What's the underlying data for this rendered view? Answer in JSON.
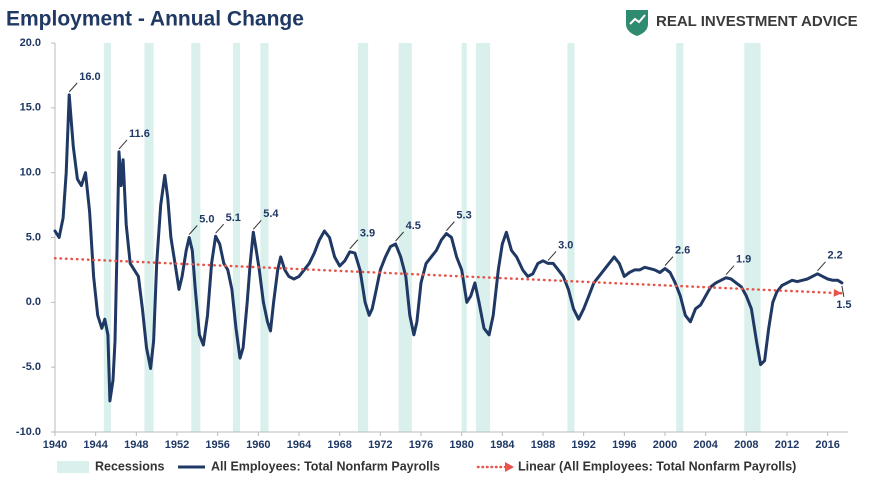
{
  "chart_data": {
    "type": "line",
    "title": "Employment - Annual Change",
    "brand": "REAL INVESTMENT ADVICE",
    "xlim": [
      1940,
      2018
    ],
    "ylim": [
      -10,
      20
    ],
    "xticks": [
      1940,
      1944,
      1948,
      1952,
      1956,
      1960,
      1964,
      1968,
      1972,
      1976,
      1980,
      1984,
      1988,
      1992,
      1996,
      2000,
      2004,
      2008,
      2012,
      2016
    ],
    "yticks": [
      {
        "value": -10,
        "label": "-10.0"
      },
      {
        "value": -5,
        "label": "-5.0"
      },
      {
        "value": 0,
        "label": "0.0"
      },
      {
        "value": 5,
        "label": "5.0"
      },
      {
        "value": 10,
        "label": "10.0"
      },
      {
        "value": 15,
        "label": "15.0"
      },
      {
        "value": 20,
        "label": "20.0"
      }
    ],
    "grid": false,
    "recessions": {
      "name": "Recessions",
      "color": "#d9f0ec",
      "periods": [
        [
          1944.8,
          1945.5
        ],
        [
          1948.8,
          1949.7
        ],
        [
          1953.4,
          1954.3
        ],
        [
          1957.5,
          1958.2
        ],
        [
          1960.2,
          1961.0
        ],
        [
          1969.8,
          1970.8
        ],
        [
          1973.8,
          1975.1
        ],
        [
          1980.0,
          1980.5
        ],
        [
          1981.4,
          1982.8
        ],
        [
          1990.4,
          1991.1
        ],
        [
          2001.1,
          2001.8
        ],
        [
          2007.8,
          2009.4
        ]
      ]
    },
    "series": [
      {
        "name": "All Employees: Total Nonfarm Payrolls",
        "color": "#1f3864",
        "x": [
          1940.0,
          1940.4,
          1940.8,
          1941.1,
          1941.4,
          1941.8,
          1942.2,
          1942.6,
          1943.0,
          1943.4,
          1943.8,
          1944.2,
          1944.6,
          1944.9,
          1945.2,
          1945.4,
          1945.7,
          1945.9,
          1946.1,
          1946.3,
          1946.5,
          1946.7,
          1947.0,
          1947.4,
          1947.8,
          1948.2,
          1948.6,
          1949.0,
          1949.4,
          1949.7,
          1950.0,
          1950.4,
          1950.8,
          1951.1,
          1951.4,
          1951.8,
          1952.2,
          1952.5,
          1952.9,
          1953.2,
          1953.5,
          1953.8,
          1954.2,
          1954.6,
          1955.0,
          1955.4,
          1955.8,
          1956.2,
          1956.6,
          1957.0,
          1957.4,
          1957.8,
          1958.2,
          1958.5,
          1958.9,
          1959.2,
          1959.5,
          1959.8,
          1960.1,
          1960.5,
          1960.9,
          1961.2,
          1961.5,
          1961.9,
          1962.2,
          1962.6,
          1963.0,
          1963.5,
          1964.0,
          1964.5,
          1965.0,
          1965.5,
          1966.0,
          1966.5,
          1967.0,
          1967.5,
          1968.0,
          1968.5,
          1969.0,
          1969.5,
          1970.0,
          1970.5,
          1970.9,
          1971.2,
          1971.6,
          1972.0,
          1972.5,
          1973.0,
          1973.5,
          1974.0,
          1974.5,
          1974.9,
          1975.3,
          1975.6,
          1976.0,
          1976.5,
          1977.0,
          1977.5,
          1978.0,
          1978.5,
          1979.0,
          1979.5,
          1980.0,
          1980.5,
          1980.9,
          1981.3,
          1981.7,
          1982.2,
          1982.7,
          1983.1,
          1983.6,
          1984.0,
          1984.4,
          1984.9,
          1985.4,
          1986.0,
          1986.5,
          1987.0,
          1987.5,
          1988.0,
          1988.5,
          1989.0,
          1989.5,
          1990.0,
          1990.5,
          1991.0,
          1991.5,
          1992.0,
          1992.5,
          1993.0,
          1993.5,
          1994.0,
          1994.5,
          1995.0,
          1995.5,
          1996.0,
          1996.5,
          1997.0,
          1997.5,
          1998.0,
          1998.5,
          1999.0,
          1999.5,
          2000.0,
          2000.5,
          2001.0,
          2001.5,
          2002.0,
          2002.5,
          2003.0,
          2003.5,
          2004.0,
          2004.5,
          2005.0,
          2005.5,
          2006.0,
          2006.5,
          2007.0,
          2007.5,
          2008.0,
          2008.5,
          2009.0,
          2009.4,
          2009.8,
          2010.2,
          2010.6,
          2011.0,
          2011.5,
          2012.0,
          2012.5,
          2013.0,
          2013.5,
          2014.0,
          2014.5,
          2015.0,
          2015.5,
          2016.0,
          2016.5,
          2017.0,
          2017.4
        ],
        "values": [
          5.5,
          5.0,
          6.5,
          10,
          16.0,
          12,
          9.5,
          9,
          10,
          7,
          2,
          -1,
          -2,
          -1.3,
          -2.5,
          -7.6,
          -6,
          -3,
          4,
          11.6,
          9,
          11,
          6,
          3,
          2.5,
          2,
          -0.5,
          -3.5,
          -5.1,
          -3,
          3,
          7.5,
          9.8,
          8,
          5.0,
          3,
          1,
          2,
          4,
          5.0,
          4,
          1,
          -2.5,
          -3.3,
          -1,
          3,
          5.1,
          4.5,
          3,
          2.5,
          1,
          -2,
          -4.3,
          -3.5,
          0,
          3,
          5.4,
          4,
          2.5,
          0,
          -1.5,
          -2.2,
          0,
          2.5,
          3.5,
          2.5,
          2,
          1.8,
          2,
          2.5,
          3,
          3.8,
          4.8,
          5.5,
          5,
          3.5,
          2.8,
          3.2,
          3.9,
          3.8,
          2.5,
          0,
          -1,
          -0.5,
          1,
          2.5,
          3.5,
          4.3,
          4.5,
          3.5,
          2,
          -1,
          -2.5,
          -1.5,
          1.5,
          3,
          3.5,
          4,
          4.8,
          5.3,
          5,
          3.5,
          2.5,
          0,
          0.5,
          1.5,
          0,
          -2,
          -2.5,
          -1,
          2.5,
          4.5,
          5.4,
          4,
          3.5,
          2.5,
          2,
          2.2,
          3,
          3.2,
          3.0,
          3,
          2.5,
          2,
          1,
          -0.5,
          -1.3,
          -0.5,
          0.5,
          1.5,
          2,
          2.5,
          3,
          3.5,
          3,
          2,
          2.3,
          2.5,
          2.5,
          2.7,
          2.6,
          2.5,
          2.3,
          2.6,
          2.3,
          1.5,
          0.5,
          -1,
          -1.5,
          -0.5,
          -0.2,
          0.5,
          1.2,
          1.5,
          1.7,
          1.9,
          1.8,
          1.5,
          1.2,
          0.5,
          -0.5,
          -3,
          -4.8,
          -4.5,
          -2,
          0,
          0.8,
          1.3,
          1.5,
          1.7,
          1.6,
          1.7,
          1.8,
          2.0,
          2.2,
          2.0,
          1.8,
          1.7,
          1.7,
          1.5
        ]
      },
      {
        "name": "Linear (All Employees: Total Nonfarm Payrolls)",
        "color": "#e8534a",
        "x": [
          1940,
          2017.4
        ],
        "values": [
          3.4,
          0.7
        ]
      }
    ],
    "annotations": [
      {
        "x": 1941.4,
        "value": 16,
        "label": "16.0"
      },
      {
        "x": 1946.3,
        "value": 11.6,
        "label": "11.6"
      },
      {
        "x": 1953.2,
        "value": 5,
        "label": "5.0"
      },
      {
        "x": 1955.8,
        "value": 5.1,
        "label": "5.1"
      },
      {
        "x": 1959.5,
        "value": 5.4,
        "label": "5.4"
      },
      {
        "x": 1969.0,
        "value": 3.9,
        "label": "3.9"
      },
      {
        "x": 1973.5,
        "value": 4.5,
        "label": "4.5"
      },
      {
        "x": 1978.5,
        "value": 5.3,
        "label": "5.3"
      },
      {
        "x": 1988.5,
        "value": 3,
        "label": "3.0"
      },
      {
        "x": 2000.0,
        "value": 2.6,
        "label": "2.6"
      },
      {
        "x": 2006.0,
        "value": 1.9,
        "label": "1.9"
      },
      {
        "x": 2015.0,
        "value": 2.2,
        "label": "2.2"
      },
      {
        "x": 2017.4,
        "value": 1.5,
        "label": "1.5"
      }
    ]
  }
}
